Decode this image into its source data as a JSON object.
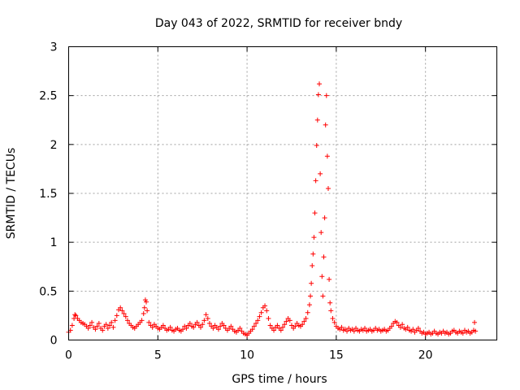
{
  "chart_data": {
    "type": "scatter",
    "title": "Day 043 of 2022, SRMTID for receiver bndy",
    "xlabel": "GPS time / hours",
    "ylabel": "SRMTID / TECUs",
    "xlim": [
      0,
      24
    ],
    "ylim": [
      0,
      3
    ],
    "xticks": [
      0,
      5,
      10,
      15,
      20
    ],
    "yticks": [
      0,
      0.5,
      1,
      1.5,
      2,
      2.5,
      3
    ],
    "xtick_labels": [
      "0",
      "5",
      "10",
      "15",
      "20"
    ],
    "ytick_labels": [
      "0",
      "0.5",
      "1",
      "1.5",
      "2",
      "2.5",
      "3"
    ],
    "grid": true,
    "marker": "+",
    "series": [
      {
        "name": "bndy",
        "color": "#ff0000",
        "points": [
          [
            0.0,
            0.08
          ],
          [
            0.1,
            0.1
          ],
          [
            0.2,
            0.15
          ],
          [
            0.3,
            0.22
          ],
          [
            0.35,
            0.26
          ],
          [
            0.4,
            0.25
          ],
          [
            0.5,
            0.22
          ],
          [
            0.6,
            0.2
          ],
          [
            0.7,
            0.18
          ],
          [
            0.8,
            0.17
          ],
          [
            0.9,
            0.16
          ],
          [
            1.0,
            0.14
          ],
          [
            1.1,
            0.12
          ],
          [
            1.2,
            0.15
          ],
          [
            1.3,
            0.18
          ],
          [
            1.4,
            0.13
          ],
          [
            1.5,
            0.11
          ],
          [
            1.6,
            0.14
          ],
          [
            1.7,
            0.17
          ],
          [
            1.8,
            0.12
          ],
          [
            1.9,
            0.1
          ],
          [
            2.0,
            0.14
          ],
          [
            2.1,
            0.16
          ],
          [
            2.2,
            0.12
          ],
          [
            2.3,
            0.15
          ],
          [
            2.4,
            0.18
          ],
          [
            2.5,
            0.13
          ],
          [
            2.6,
            0.2
          ],
          [
            2.7,
            0.25
          ],
          [
            2.8,
            0.31
          ],
          [
            2.9,
            0.33
          ],
          [
            3.0,
            0.3
          ],
          [
            3.1,
            0.27
          ],
          [
            3.2,
            0.24
          ],
          [
            3.3,
            0.2
          ],
          [
            3.4,
            0.17
          ],
          [
            3.5,
            0.15
          ],
          [
            3.6,
            0.13
          ],
          [
            3.7,
            0.12
          ],
          [
            3.8,
            0.14
          ],
          [
            3.9,
            0.16
          ],
          [
            4.0,
            0.18
          ],
          [
            4.1,
            0.2
          ],
          [
            4.2,
            0.27
          ],
          [
            4.25,
            0.33
          ],
          [
            4.3,
            0.41
          ],
          [
            4.35,
            0.39
          ],
          [
            4.4,
            0.3
          ],
          [
            4.5,
            0.18
          ],
          [
            4.6,
            0.15
          ],
          [
            4.7,
            0.13
          ],
          [
            4.8,
            0.16
          ],
          [
            4.9,
            0.14
          ],
          [
            5.0,
            0.12
          ],
          [
            5.1,
            0.11
          ],
          [
            5.2,
            0.13
          ],
          [
            5.3,
            0.15
          ],
          [
            5.4,
            0.12
          ],
          [
            5.5,
            0.1
          ],
          [
            5.6,
            0.11
          ],
          [
            5.7,
            0.13
          ],
          [
            5.8,
            0.1
          ],
          [
            5.9,
            0.09
          ],
          [
            6.0,
            0.11
          ],
          [
            6.1,
            0.12
          ],
          [
            6.2,
            0.1
          ],
          [
            6.3,
            0.09
          ],
          [
            6.4,
            0.11
          ],
          [
            6.5,
            0.14
          ],
          [
            6.6,
            0.12
          ],
          [
            6.7,
            0.15
          ],
          [
            6.8,
            0.17
          ],
          [
            6.9,
            0.14
          ],
          [
            7.0,
            0.13
          ],
          [
            7.1,
            0.16
          ],
          [
            7.2,
            0.18
          ],
          [
            7.3,
            0.15
          ],
          [
            7.4,
            0.13
          ],
          [
            7.5,
            0.16
          ],
          [
            7.6,
            0.2
          ],
          [
            7.7,
            0.26
          ],
          [
            7.8,
            0.22
          ],
          [
            7.9,
            0.17
          ],
          [
            8.0,
            0.14
          ],
          [
            8.1,
            0.12
          ],
          [
            8.2,
            0.15
          ],
          [
            8.3,
            0.13
          ],
          [
            8.4,
            0.11
          ],
          [
            8.5,
            0.14
          ],
          [
            8.6,
            0.17
          ],
          [
            8.7,
            0.15
          ],
          [
            8.8,
            0.12
          ],
          [
            8.9,
            0.1
          ],
          [
            9.0,
            0.12
          ],
          [
            9.1,
            0.14
          ],
          [
            9.2,
            0.11
          ],
          [
            9.3,
            0.09
          ],
          [
            9.4,
            0.08
          ],
          [
            9.5,
            0.1
          ],
          [
            9.6,
            0.12
          ],
          [
            9.7,
            0.09
          ],
          [
            9.8,
            0.07
          ],
          [
            9.9,
            0.06
          ],
          [
            10.0,
            0.05
          ],
          [
            10.1,
            0.07
          ],
          [
            10.2,
            0.09
          ],
          [
            10.3,
            0.11
          ],
          [
            10.4,
            0.14
          ],
          [
            10.5,
            0.17
          ],
          [
            10.6,
            0.2
          ],
          [
            10.7,
            0.24
          ],
          [
            10.8,
            0.28
          ],
          [
            10.9,
            0.33
          ],
          [
            11.0,
            0.35
          ],
          [
            11.1,
            0.3
          ],
          [
            11.2,
            0.22
          ],
          [
            11.3,
            0.15
          ],
          [
            11.4,
            0.12
          ],
          [
            11.5,
            0.1
          ],
          [
            11.6,
            0.13
          ],
          [
            11.7,
            0.15
          ],
          [
            11.8,
            0.12
          ],
          [
            11.9,
            0.1
          ],
          [
            12.0,
            0.13
          ],
          [
            12.1,
            0.16
          ],
          [
            12.2,
            0.19
          ],
          [
            12.3,
            0.22
          ],
          [
            12.4,
            0.2
          ],
          [
            12.5,
            0.15
          ],
          [
            12.6,
            0.12
          ],
          [
            12.7,
            0.14
          ],
          [
            12.8,
            0.17
          ],
          [
            12.9,
            0.15
          ],
          [
            13.0,
            0.14
          ],
          [
            13.1,
            0.16
          ],
          [
            13.2,
            0.19
          ],
          [
            13.3,
            0.22
          ],
          [
            13.4,
            0.28
          ],
          [
            13.5,
            0.36
          ],
          [
            13.55,
            0.45
          ],
          [
            13.6,
            0.58
          ],
          [
            13.65,
            0.76
          ],
          [
            13.7,
            0.88
          ],
          [
            13.75,
            1.05
          ],
          [
            13.8,
            1.3
          ],
          [
            13.85,
            1.63
          ],
          [
            13.9,
            1.99
          ],
          [
            13.95,
            2.25
          ],
          [
            14.0,
            2.51
          ],
          [
            14.05,
            2.62
          ],
          [
            14.1,
            1.7
          ],
          [
            14.15,
            1.1
          ],
          [
            14.2,
            0.65
          ],
          [
            14.25,
            0.45
          ],
          [
            14.3,
            0.85
          ],
          [
            14.35,
            1.25
          ],
          [
            14.4,
            2.2
          ],
          [
            14.45,
            2.5
          ],
          [
            14.5,
            1.88
          ],
          [
            14.55,
            1.55
          ],
          [
            14.6,
            0.62
          ],
          [
            14.65,
            0.38
          ],
          [
            14.7,
            0.3
          ],
          [
            14.8,
            0.22
          ],
          [
            14.9,
            0.18
          ],
          [
            15.0,
            0.14
          ],
          [
            15.1,
            0.12
          ],
          [
            15.2,
            0.11
          ],
          [
            15.3,
            0.13
          ],
          [
            15.4,
            0.1
          ],
          [
            15.5,
            0.11
          ],
          [
            15.6,
            0.09
          ],
          [
            15.7,
            0.12
          ],
          [
            15.8,
            0.1
          ],
          [
            15.9,
            0.11
          ],
          [
            16.0,
            0.09
          ],
          [
            16.1,
            0.12
          ],
          [
            16.2,
            0.1
          ],
          [
            16.3,
            0.09
          ],
          [
            16.4,
            0.11
          ],
          [
            16.5,
            0.1
          ],
          [
            16.6,
            0.12
          ],
          [
            16.7,
            0.09
          ],
          [
            16.8,
            0.1
          ],
          [
            16.9,
            0.11
          ],
          [
            17.0,
            0.09
          ],
          [
            17.1,
            0.1
          ],
          [
            17.2,
            0.12
          ],
          [
            17.3,
            0.1
          ],
          [
            17.4,
            0.11
          ],
          [
            17.5,
            0.09
          ],
          [
            17.6,
            0.1
          ],
          [
            17.7,
            0.11
          ],
          [
            17.8,
            0.09
          ],
          [
            17.9,
            0.1
          ],
          [
            18.0,
            0.12
          ],
          [
            18.1,
            0.14
          ],
          [
            18.2,
            0.17
          ],
          [
            18.3,
            0.19
          ],
          [
            18.4,
            0.18
          ],
          [
            18.5,
            0.15
          ],
          [
            18.6,
            0.13
          ],
          [
            18.7,
            0.16
          ],
          [
            18.8,
            0.12
          ],
          [
            18.9,
            0.11
          ],
          [
            19.0,
            0.13
          ],
          [
            19.1,
            0.1
          ],
          [
            19.2,
            0.09
          ],
          [
            19.3,
            0.11
          ],
          [
            19.4,
            0.08
          ],
          [
            19.5,
            0.1
          ],
          [
            19.6,
            0.12
          ],
          [
            19.7,
            0.09
          ],
          [
            19.8,
            0.07
          ],
          [
            19.9,
            0.08
          ],
          [
            20.0,
            0.06
          ],
          [
            20.1,
            0.07
          ],
          [
            20.2,
            0.08
          ],
          [
            20.3,
            0.06
          ],
          [
            20.4,
            0.07
          ],
          [
            20.5,
            0.09
          ],
          [
            20.6,
            0.07
          ],
          [
            20.7,
            0.06
          ],
          [
            20.8,
            0.08
          ],
          [
            20.9,
            0.07
          ],
          [
            21.0,
            0.09
          ],
          [
            21.1,
            0.07
          ],
          [
            21.2,
            0.08
          ],
          [
            21.3,
            0.06
          ],
          [
            21.4,
            0.07
          ],
          [
            21.5,
            0.09
          ],
          [
            21.6,
            0.1
          ],
          [
            21.7,
            0.08
          ],
          [
            21.8,
            0.07
          ],
          [
            21.9,
            0.09
          ],
          [
            22.0,
            0.08
          ],
          [
            22.1,
            0.07
          ],
          [
            22.2,
            0.1
          ],
          [
            22.3,
            0.08
          ],
          [
            22.4,
            0.09
          ],
          [
            22.5,
            0.07
          ],
          [
            22.6,
            0.08
          ],
          [
            22.7,
            0.1
          ],
          [
            22.75,
            0.18
          ],
          [
            22.8,
            0.09
          ]
        ]
      }
    ]
  }
}
